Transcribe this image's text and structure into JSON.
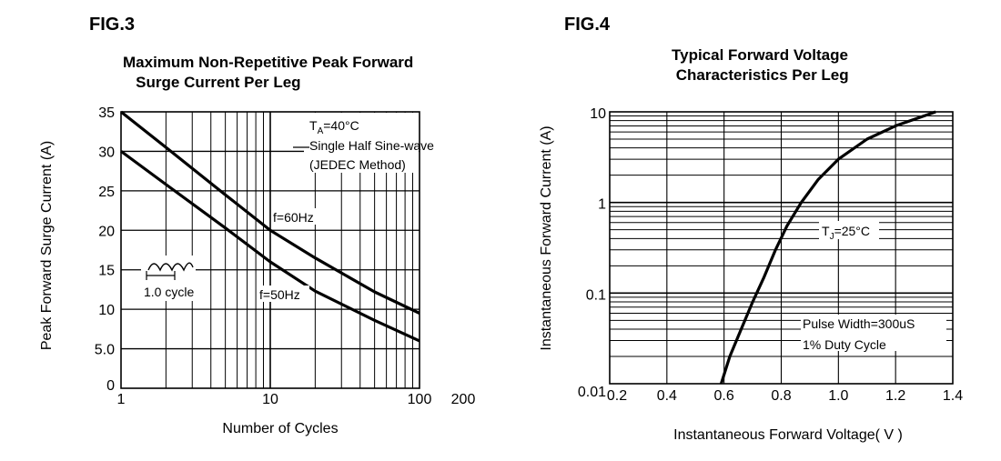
{
  "chart_data": [
    {
      "fig_label": "FIG.3",
      "type": "line",
      "title": "Maximum Non-Repetitive Peak Forward\n   Surge Current Per Leg",
      "xlabel": "Number of Cycles",
      "ylabel": "Peak Forward Surge Current (A)",
      "xscale": "log",
      "xlim": [
        1,
        100
      ],
      "ylim": [
        0,
        35
      ],
      "x_ticks": [
        {
          "value": 1,
          "label": "1"
        },
        {
          "value": 10,
          "label": "10"
        },
        {
          "value": 100,
          "label": "100"
        },
        {
          "value": 200,
          "label": "200"
        }
      ],
      "y_ticks": [
        {
          "value": 0,
          "label": "0"
        },
        {
          "value": 5,
          "label": "5.0"
        },
        {
          "value": 10,
          "label": "10"
        },
        {
          "value": 15,
          "label": "15"
        },
        {
          "value": 20,
          "label": "20"
        },
        {
          "value": 25,
          "label": "25"
        },
        {
          "value": 30,
          "label": "30"
        },
        {
          "value": 35,
          "label": "35"
        }
      ],
      "grid": true,
      "series": [
        {
          "name": "f=60Hz",
          "x": [
            1,
            2,
            5,
            10,
            20,
            50,
            100
          ],
          "y": [
            35,
            30.5,
            24.5,
            20,
            16.5,
            12.2,
            9.5
          ]
        },
        {
          "name": "f=50Hz",
          "x": [
            1,
            2,
            5,
            10,
            20,
            50,
            100
          ],
          "y": [
            30,
            25.8,
            20.3,
            16,
            12.3,
            8.6,
            6
          ]
        }
      ],
      "annotations": {
        "condition_1": "T",
        "condition_1_sub": "A",
        "condition_1_rest": "=40°C",
        "condition_2": "Single Half Sine-wave",
        "condition_3": "(JEDEC Method)",
        "cycle_label": "1.0 cycle"
      }
    },
    {
      "fig_label": "FIG.4",
      "type": "line",
      "title": "Typical Forward Voltage\n Characteristics Per Leg",
      "xlabel": "Instantaneous Forward Voltage( V )",
      "ylabel": "Instantaneous Forward Current (A)",
      "yscale": "log",
      "xlim": [
        0.2,
        1.4
      ],
      "ylim": [
        0.01,
        10
      ],
      "x_ticks": [
        {
          "value": 0.2,
          "label": "0.2"
        },
        {
          "value": 0.4,
          "label": "0.4"
        },
        {
          "value": 0.6,
          "label": "0.6"
        },
        {
          "value": 0.8,
          "label": "0.8"
        },
        {
          "value": 1.0,
          "label": "1.0"
        },
        {
          "value": 1.2,
          "label": "1.2"
        },
        {
          "value": 1.4,
          "label": "1.4"
        }
      ],
      "y_ticks": [
        {
          "value": 0.01,
          "label": "0.01"
        },
        {
          "value": 0.1,
          "label": "0.1"
        },
        {
          "value": 1,
          "label": "1"
        },
        {
          "value": 10,
          "label": "10"
        }
      ],
      "grid": true,
      "series": [
        {
          "name": "T_J=25°C",
          "x": [
            0.59,
            0.62,
            0.66,
            0.7,
            0.74,
            0.78,
            0.82,
            0.87,
            0.93,
            1.0,
            1.1,
            1.2,
            1.34
          ],
          "y": [
            0.01,
            0.02,
            0.04,
            0.08,
            0.15,
            0.3,
            0.55,
            1.0,
            1.8,
            3.0,
            5.0,
            7.0,
            10.0
          ]
        }
      ],
      "annotations": {
        "tj_prefix": "T",
        "tj_sub": "J",
        "tj_rest": "=25°C",
        "pulse": "Pulse Width=300uS",
        "duty": "1% Duty Cycle"
      }
    }
  ]
}
